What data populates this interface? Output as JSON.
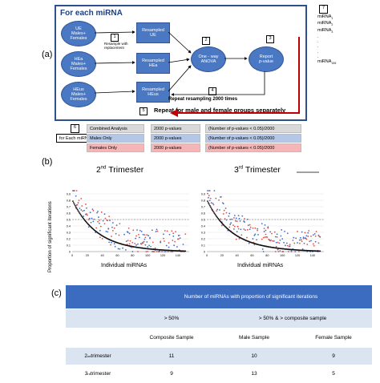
{
  "panel_labels": {
    "a": "(a)",
    "b": "(b)",
    "c": "(c)"
  },
  "diagram": {
    "title": "For each miRNA",
    "groups": [
      {
        "label": "UE\nMales+\nFemales"
      },
      {
        "label": "HEa\nMales+\nFemales"
      },
      {
        "label": "HEus\nMales+\nFemales"
      }
    ],
    "resampled": [
      {
        "label": "Resampled\nUE"
      },
      {
        "label": "Resampled\nHEa"
      },
      {
        "label": "Resampled\nHEus"
      }
    ],
    "anova": "One - way\nANOVA",
    "report": "Report\np-value",
    "step_numbers": [
      "1",
      "2",
      "3",
      "4",
      "5",
      "6",
      "7"
    ],
    "resample_note": "Resample with\nreplacement",
    "repeat_resampling": "Repeat resampling 2000 times",
    "repeat_groups": "Repeat for male and female groups separately",
    "mirna_list": [
      "miRNA",
      "miRNA",
      "miRNA",
      ".",
      ".",
      ".",
      ".",
      ".",
      "miRNA"
    ],
    "mirna_subs": [
      "1",
      "2",
      "3",
      "",
      "",
      "",
      "",
      "",
      "155"
    ],
    "for_each": "for Each miRNA"
  },
  "legend_table": {
    "rows": [
      {
        "label": "Combined Analysis",
        "pvalues": "2000 p-values",
        "formula": "(Number of p-values < 0.05)/2000",
        "color": "#d9d9d9"
      },
      {
        "label": "Males Only",
        "pvalues": "2000 p-values",
        "formula": "(Number of p-values < 0.05)/2000",
        "color": "#b4c7e7"
      },
      {
        "label": "Females Only",
        "pvalues": "2000 p-values",
        "formula": "(Number of p-values < 0.05)/2000",
        "color": "#f4b6b6"
      }
    ]
  },
  "panel_b": {
    "ylabel": "Proportion of significant iterations",
    "panels": [
      {
        "title_num": "2",
        "title_sup": "nd",
        "title_rest": " Trimester",
        "xlabel": "Individual miRNAs"
      },
      {
        "title_num": "3",
        "title_sup": "rd",
        "title_rest": " Trimester",
        "xlabel": "Individual miRNAs"
      }
    ]
  },
  "chart_data": [
    {
      "type": "scatter",
      "title": "2nd Trimester",
      "xlabel": "Individual miRNAs",
      "ylabel": "Proportion of significant iterations",
      "xlim": [
        0,
        155
      ],
      "ylim": [
        0,
        1
      ],
      "xticks": [
        "0",
        "20",
        "40",
        "60",
        "80",
        "100",
        "120",
        "140"
      ],
      "yticks": [
        "0",
        "0.1",
        "0.2",
        "0.3",
        "0.4",
        "0.5",
        "0.6",
        "0.7",
        "0.8",
        "0.9"
      ],
      "reference_line": 0.5,
      "series": [
        {
          "name": "Composite",
          "color": "#111111",
          "curve": "decreasing"
        },
        {
          "name": "Males",
          "color": "#3d6ec9"
        },
        {
          "name": "Females",
          "color": "#d9534f"
        }
      ]
    },
    {
      "type": "scatter",
      "title": "3rd Trimester",
      "xlabel": "Individual miRNAs",
      "ylabel": "Proportion of significant iterations",
      "xlim": [
        0,
        155
      ],
      "ylim": [
        0,
        1
      ],
      "xticks": [
        "0",
        "20",
        "40",
        "60",
        "80",
        "100",
        "120",
        "140"
      ],
      "yticks": [
        "0",
        "0.1",
        "0.2",
        "0.3",
        "0.4",
        "0.5",
        "0.6",
        "0.7",
        "0.8",
        "0.9"
      ],
      "reference_line": 0.5,
      "series": [
        {
          "name": "Composite",
          "color": "#111111",
          "curve": "decreasing"
        },
        {
          "name": "Males",
          "color": "#3d6ec9"
        },
        {
          "name": "Females",
          "color": "#d9534f"
        }
      ]
    }
  ],
  "table_c": {
    "header": "Number of miRNAs with proportion of significant iterations",
    "sub1": [
      "> 50%",
      "> 50% & > composite sample"
    ],
    "sub2": [
      "Composite Sample",
      "Male Sample",
      "Female Sample"
    ],
    "rows": [
      {
        "label_num": "2",
        "label_sup": "nd",
        "label_rest": " trimester",
        "values": [
          "11",
          "10",
          "9"
        ]
      },
      {
        "label_num": "3",
        "label_sup": "rd",
        "label_rest": " trimester",
        "values": [
          "9",
          "13",
          "5"
        ]
      }
    ],
    "header_color": "#3b6cc0",
    "light_color": "#dbe4f1"
  }
}
